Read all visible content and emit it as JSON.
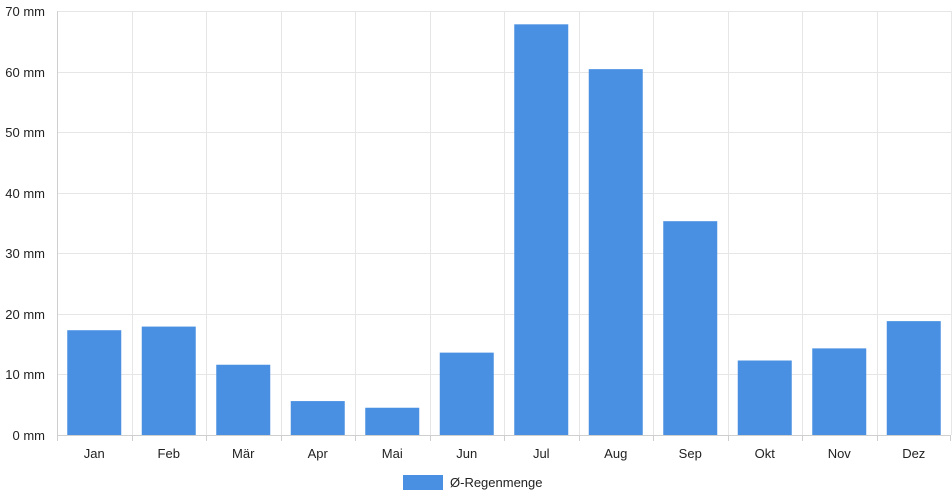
{
  "chart_data": {
    "type": "bar",
    "title": "",
    "xlabel": "",
    "ylabel": "",
    "categories": [
      "Jan",
      "Feb",
      "Mär",
      "Apr",
      "Mai",
      "Jun",
      "Jul",
      "Aug",
      "Sep",
      "Okt",
      "Nov",
      "Dez"
    ],
    "series": [
      {
        "name": "Ø-Regenmenge",
        "color": "#4a90e2",
        "values": [
          17.3,
          17.9,
          11.6,
          5.6,
          4.5,
          13.6,
          67.8,
          60.4,
          35.3,
          12.3,
          14.3,
          18.8
        ]
      }
    ],
    "ylim": [
      0,
      70
    ],
    "yticks": [
      0,
      10,
      20,
      30,
      40,
      50,
      60,
      70
    ],
    "ytick_unit": "mm",
    "grid": true,
    "legend": "bottom-center"
  }
}
